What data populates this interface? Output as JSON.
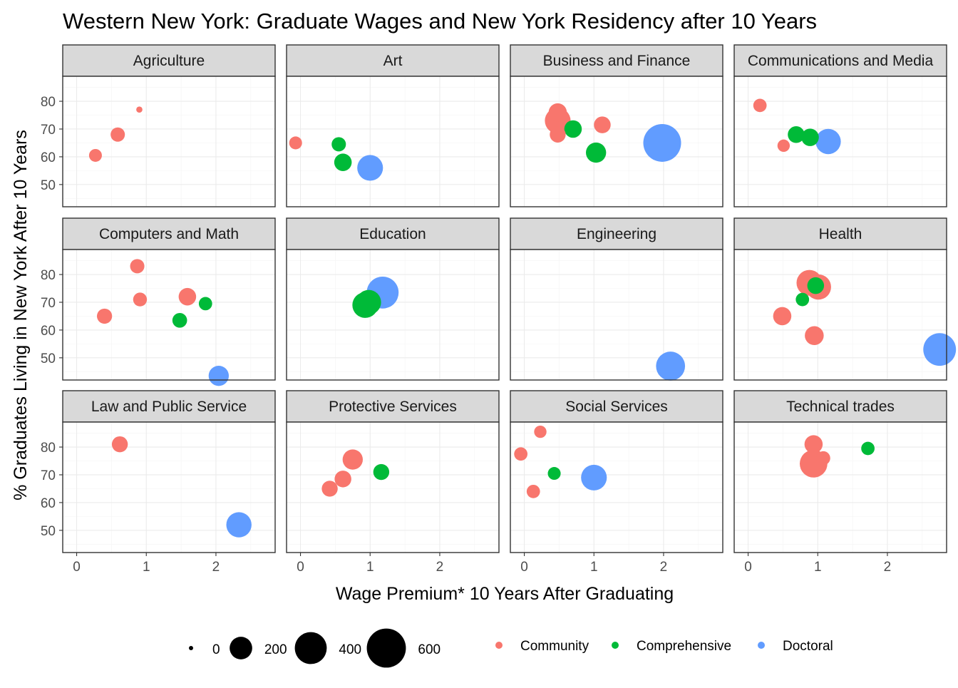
{
  "chart_data": {
    "type": "scatter",
    "title": "Western New York: Graduate Wages and New York Residency after 10 Years",
    "xlabel": "Wage Premium* 10 Years After Graduating",
    "ylabel": "% Graduates Living in New York After 10 Years",
    "xlim": [
      -0.2,
      2.85
    ],
    "ylim": [
      42,
      89
    ],
    "x_ticks": [
      0,
      1,
      2
    ],
    "y_ticks": [
      50,
      60,
      70,
      80
    ],
    "grid": true,
    "size_legend": {
      "title": "",
      "values": [
        0,
        200,
        400,
        600
      ],
      "labels": [
        "0",
        "200",
        "400",
        "600"
      ]
    },
    "color_legend": {
      "title": "",
      "entries": [
        {
          "name": "Community",
          "color": "#F8766D"
        },
        {
          "name": "Comprehensive",
          "color": "#00BA38"
        },
        {
          "name": "Doctoral",
          "color": "#619CFF"
        }
      ]
    },
    "panels": [
      {
        "name": "Agriculture",
        "points": [
          {
            "x": 0.9,
            "y": 77,
            "type": "Community",
            "size": 15
          },
          {
            "x": 0.59,
            "y": 68,
            "type": "Community",
            "size": 80
          },
          {
            "x": 0.27,
            "y": 60.5,
            "type": "Community",
            "size": 65
          }
        ]
      },
      {
        "name": "Art",
        "points": [
          {
            "x": -0.07,
            "y": 65,
            "type": "Community",
            "size": 65
          },
          {
            "x": 0.55,
            "y": 64.5,
            "type": "Comprehensive",
            "size": 80
          },
          {
            "x": 0.61,
            "y": 58,
            "type": "Comprehensive",
            "size": 120
          },
          {
            "x": 1.0,
            "y": 56,
            "type": "Doctoral",
            "size": 260
          }
        ]
      },
      {
        "name": "Business and Finance",
        "points": [
          {
            "x": 0.48,
            "y": 76,
            "type": "Community",
            "size": 130
          },
          {
            "x": 0.48,
            "y": 73,
            "type": "Community",
            "size": 260
          },
          {
            "x": 0.48,
            "y": 68,
            "type": "Community",
            "size": 100
          },
          {
            "x": 1.12,
            "y": 71.5,
            "type": "Community",
            "size": 110
          },
          {
            "x": 0.7,
            "y": 70,
            "type": "Comprehensive",
            "size": 120
          },
          {
            "x": 1.03,
            "y": 61.5,
            "type": "Comprehensive",
            "size": 160
          },
          {
            "x": 1.98,
            "y": 65,
            "type": "Doctoral",
            "size": 560
          }
        ]
      },
      {
        "name": "Communications and Media",
        "points": [
          {
            "x": 0.17,
            "y": 78.5,
            "type": "Community",
            "size": 70
          },
          {
            "x": 0.51,
            "y": 64,
            "type": "Community",
            "size": 60
          },
          {
            "x": 0.69,
            "y": 68,
            "type": "Comprehensive",
            "size": 110
          },
          {
            "x": 0.89,
            "y": 67,
            "type": "Comprehensive",
            "size": 120
          },
          {
            "x": 1.15,
            "y": 65.5,
            "type": "Doctoral",
            "size": 250
          }
        ]
      },
      {
        "name": "Computers and Math",
        "points": [
          {
            "x": 0.87,
            "y": 83,
            "type": "Community",
            "size": 80
          },
          {
            "x": 0.91,
            "y": 71,
            "type": "Community",
            "size": 75
          },
          {
            "x": 1.59,
            "y": 72,
            "type": "Community",
            "size": 120
          },
          {
            "x": 0.4,
            "y": 65,
            "type": "Community",
            "size": 90
          },
          {
            "x": 1.85,
            "y": 69.5,
            "type": "Comprehensive",
            "size": 70
          },
          {
            "x": 1.48,
            "y": 63.5,
            "type": "Comprehensive",
            "size": 85
          },
          {
            "x": 2.04,
            "y": 43.5,
            "type": "Doctoral",
            "size": 160
          }
        ]
      },
      {
        "name": "Education",
        "points": [
          {
            "x": 0.93,
            "y": 69,
            "type": "Comprehensive",
            "size": 260
          },
          {
            "x": 0.98,
            "y": 70,
            "type": "Comprehensive",
            "size": 240
          },
          {
            "x": 1.18,
            "y": 73.5,
            "type": "Doctoral",
            "size": 400
          }
        ]
      },
      {
        "name": "Engineering",
        "points": [
          {
            "x": 2.1,
            "y": 47,
            "type": "Doctoral",
            "size": 330
          }
        ]
      },
      {
        "name": "Health",
        "points": [
          {
            "x": 0.88,
            "y": 77,
            "type": "Community",
            "size": 260
          },
          {
            "x": 1.01,
            "y": 75.5,
            "type": "Community",
            "size": 250
          },
          {
            "x": 0.49,
            "y": 65,
            "type": "Community",
            "size": 130
          },
          {
            "x": 0.95,
            "y": 58,
            "type": "Community",
            "size": 140
          },
          {
            "x": 0.97,
            "y": 76,
            "type": "Comprehensive",
            "size": 110
          },
          {
            "x": 0.78,
            "y": 71,
            "type": "Comprehensive",
            "size": 70
          },
          {
            "x": 2.75,
            "y": 53,
            "type": "Doctoral",
            "size": 420
          }
        ]
      },
      {
        "name": "Law and Public Service",
        "points": [
          {
            "x": 0.62,
            "y": 81,
            "type": "Community",
            "size": 100
          },
          {
            "x": 2.33,
            "y": 52,
            "type": "Doctoral",
            "size": 250
          }
        ]
      },
      {
        "name": "Protective Services",
        "points": [
          {
            "x": 0.75,
            "y": 75.5,
            "type": "Community",
            "size": 160
          },
          {
            "x": 0.61,
            "y": 68.5,
            "type": "Community",
            "size": 110
          },
          {
            "x": 0.42,
            "y": 65,
            "type": "Community",
            "size": 100
          },
          {
            "x": 1.16,
            "y": 71,
            "type": "Comprehensive",
            "size": 100
          }
        ]
      },
      {
        "name": "Social Services",
        "points": [
          {
            "x": 0.23,
            "y": 85.5,
            "type": "Community",
            "size": 60
          },
          {
            "x": -0.05,
            "y": 77.5,
            "type": "Community",
            "size": 70
          },
          {
            "x": 0.13,
            "y": 64,
            "type": "Community",
            "size": 70
          },
          {
            "x": 0.43,
            "y": 70.5,
            "type": "Comprehensive",
            "size": 65
          },
          {
            "x": 1.0,
            "y": 69,
            "type": "Doctoral",
            "size": 260
          }
        ]
      },
      {
        "name": "Technical trades",
        "points": [
          {
            "x": 0.94,
            "y": 81,
            "type": "Community",
            "size": 130
          },
          {
            "x": 1.08,
            "y": 76,
            "type": "Community",
            "size": 75
          },
          {
            "x": 0.94,
            "y": 74,
            "type": "Community",
            "size": 300
          },
          {
            "x": 1.72,
            "y": 79.5,
            "type": "Comprehensive",
            "size": 70
          }
        ]
      }
    ]
  }
}
